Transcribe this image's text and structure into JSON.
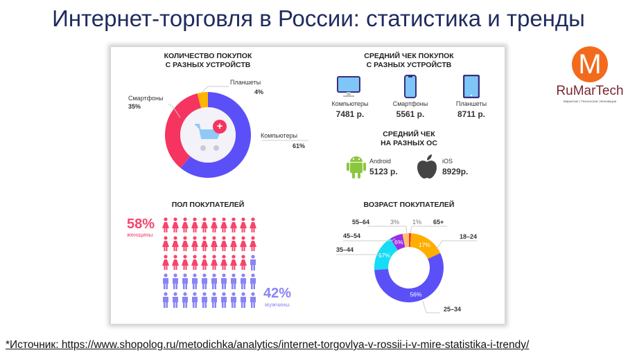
{
  "title": "Интернет-торговля в России: статистика и тренды",
  "logo": {
    "letter": "M",
    "name": "RuMarTech",
    "tagline": "Маркетинг | Технологии | Инновации",
    "color": "#f26b1d",
    "text_color": "#7a2630"
  },
  "footer": "*Источник: https://www.shopolog.ru/metodichka/analytics/internet-torgovlya-v-rossii-i-v-mire-statistika-i-trendy/",
  "avg_check_devices": {
    "title1": "СРЕДНИЙ ЧЕК ПОКУПОК",
    "title2": "С РАЗНЫХ УСТРОЙСТВ",
    "items": [
      {
        "label": "Компьютеры",
        "value": "7481 р.",
        "icon": "monitor-icon"
      },
      {
        "label": "Смартфоны",
        "value": "5561 р.",
        "icon": "smartphone-icon"
      },
      {
        "label": "Планшеты",
        "value": "8711 р.",
        "icon": "tablet-icon"
      }
    ]
  },
  "avg_check_os": {
    "title1": "СРЕДНИЙ ЧЕК",
    "title2": "НА РАЗНЫХ ОС",
    "items": [
      {
        "label": "Android",
        "value": "5123 р.",
        "icon": "android-icon"
      },
      {
        "label": "iOS",
        "value": "8929р.",
        "icon": "apple-icon"
      }
    ]
  },
  "gender": {
    "title": "ПОЛ ПОКУПАТЕЛЕЙ",
    "women_pct": "58%",
    "women_label": "женщины",
    "men_pct": "42%",
    "men_label": "мужчины",
    "women_icons": 29,
    "total_icons": 50,
    "women_color": "#f5456b",
    "men_color": "#8a84f5"
  },
  "chart_data": [
    {
      "type": "pie",
      "title1": "КОЛИЧЕСТВО ПОКУПОК",
      "title2": "С РАЗНЫХ УСТРОЙСТВ",
      "donut": true,
      "slices": [
        {
          "label": "Компьютеры",
          "value": 61,
          "text": "61%",
          "color": "#5b50f7"
        },
        {
          "label": "Смартфоны",
          "value": 35,
          "text": "35%",
          "color": "#f5345f"
        },
        {
          "label": "Планшеты",
          "value": 4,
          "text": "4%",
          "color": "#ffb400"
        }
      ]
    },
    {
      "type": "pie",
      "title": "ВОЗРАСТ ПОКУПАТЕЛЕЙ",
      "donut": true,
      "slices": [
        {
          "label": "65+",
          "value": 1,
          "text": "1%",
          "color": "#f0354f"
        },
        {
          "label": "18–24",
          "value": 17,
          "text": "17%",
          "color": "#ffae00"
        },
        {
          "label": "25–34",
          "value": 56,
          "text": "56%",
          "color": "#5b50f7"
        },
        {
          "label": "35–44",
          "value": 17,
          "text": "17%",
          "color": "#16dcf5"
        },
        {
          "label": "45–54",
          "value": 6,
          "text": "6%",
          "color": "#9b2ee8"
        },
        {
          "label": "55–64",
          "value": 3,
          "text": "3%",
          "color": "#ffc36b"
        }
      ]
    }
  ]
}
